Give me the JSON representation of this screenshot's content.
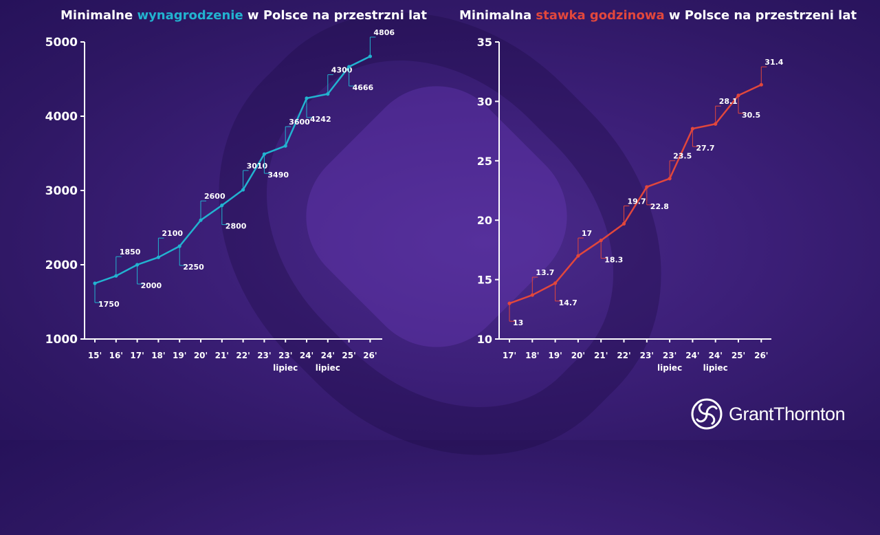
{
  "colors": {
    "left_accent": "#22b3d0",
    "right_accent": "#e2473c",
    "axis": "#ffffff"
  },
  "left": {
    "title_prefix": "Minimalne ",
    "title_highlight": "wynagrodzenie",
    "title_suffix": " w Polsce na przestrzni lat"
  },
  "right": {
    "title_prefix": "Minimalna ",
    "title_highlight": "stawka godzinowa",
    "title_suffix": " w Polsce na przestrzeni lat"
  },
  "brand": {
    "name": "GrantThornton",
    "icon": "grant-thornton-logo-icon"
  },
  "chart_data": [
    {
      "type": "line",
      "title": "Minimalne wynagrodzenie w Polsce na przestrzni lat",
      "categories": [
        "15'",
        "16'",
        "17'",
        "18'",
        "19'",
        "20'",
        "21'",
        "22'",
        "23'",
        "23'",
        "24'",
        "24'",
        "25'",
        "26'"
      ],
      "category_sublabels": [
        "",
        "",
        "",
        "",
        "",
        "",
        "",
        "",
        "",
        "lipiec",
        "",
        "lipiec",
        "",
        ""
      ],
      "values": [
        1750,
        1850,
        2000,
        2100,
        2250,
        2600,
        2800,
        3010,
        3490,
        3600,
        4242,
        4300,
        4666,
        4806
      ],
      "ylim": [
        1000,
        5000
      ],
      "yticks": [
        1000,
        2000,
        3000,
        4000,
        5000
      ],
      "grid": false,
      "xlabel": "",
      "ylabel": ""
    },
    {
      "type": "line",
      "title": "Minimalna stawka godzinowa w Polsce na przestrzeni lat",
      "categories": [
        "17'",
        "18'",
        "19'",
        "20'",
        "21'",
        "22'",
        "23'",
        "23'",
        "24'",
        "24'",
        "25'",
        "26'"
      ],
      "category_sublabels": [
        "",
        "",
        "",
        "",
        "",
        "",
        "",
        "lipiec",
        "",
        "lipiec",
        "",
        ""
      ],
      "values": [
        13,
        13.7,
        14.7,
        17,
        18.3,
        19.7,
        22.8,
        23.5,
        27.7,
        28.1,
        30.5,
        31.4
      ],
      "ylim": [
        10,
        35
      ],
      "yticks": [
        10,
        15,
        20,
        25,
        30,
        35
      ],
      "grid": false,
      "xlabel": "",
      "ylabel": ""
    }
  ]
}
